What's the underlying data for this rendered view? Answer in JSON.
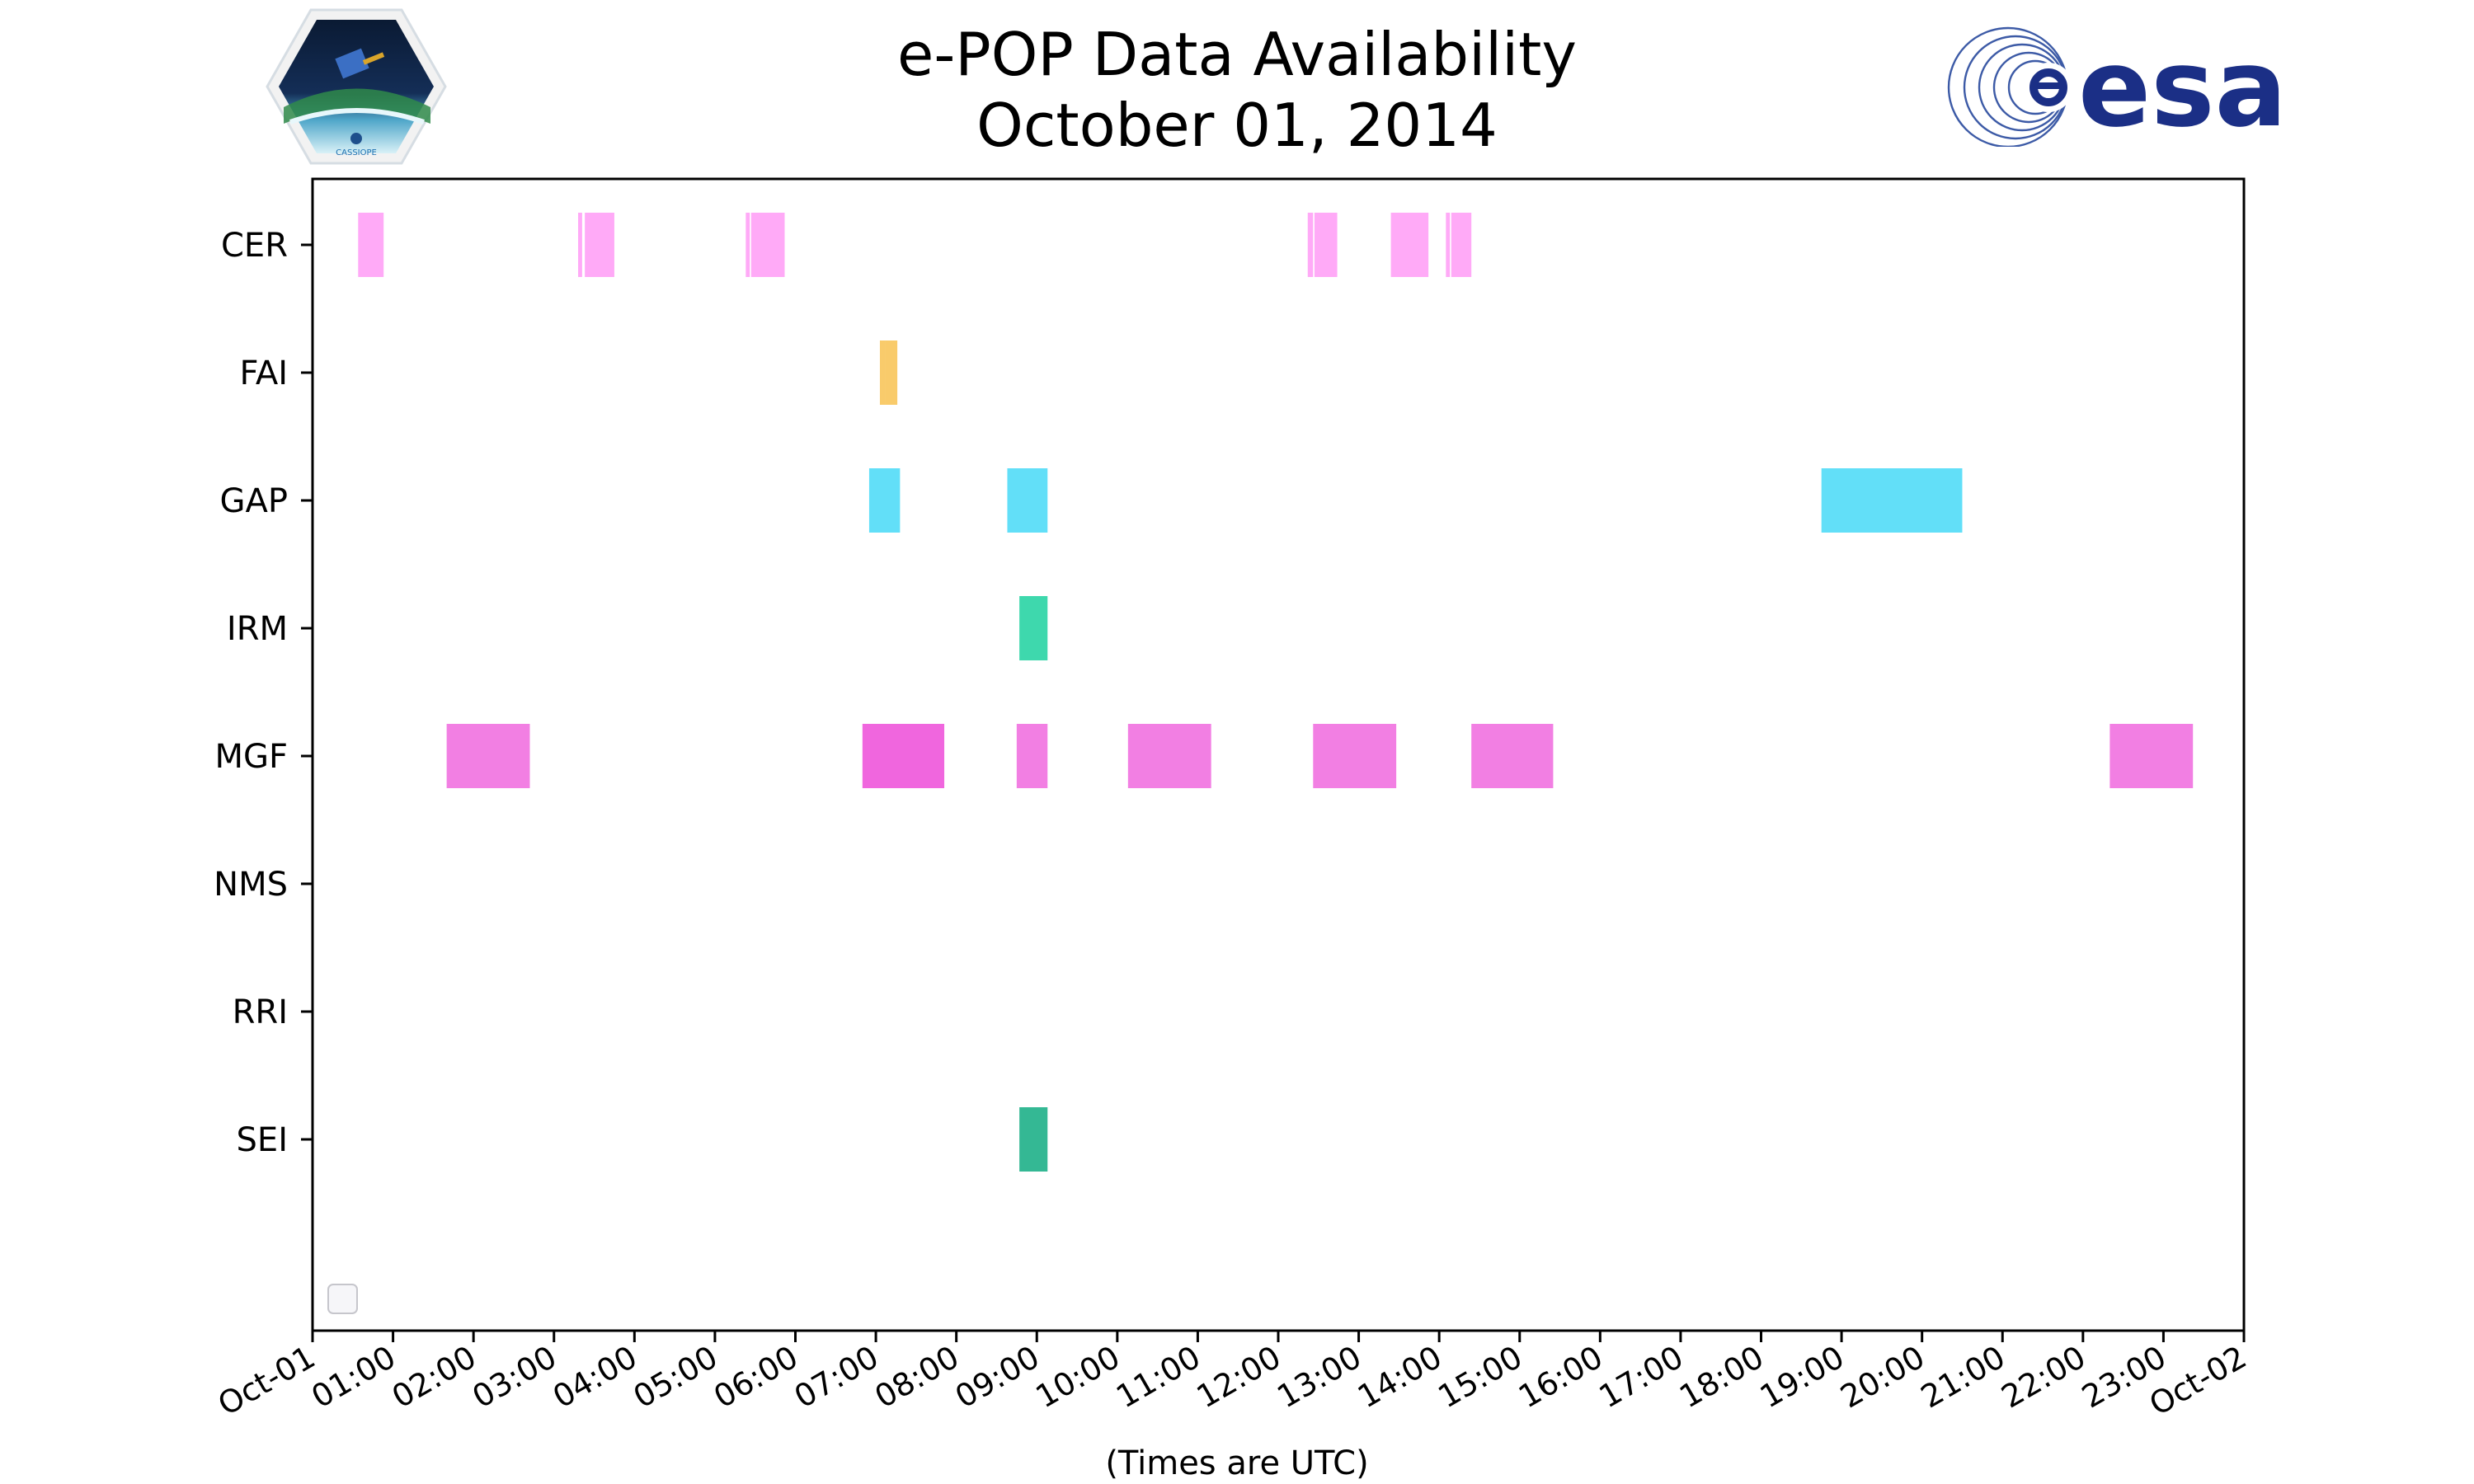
{
  "page": {
    "title_line1": "e-POP Data Availability",
    "title_line2": "October 01, 2014",
    "left_logo_text": "CASSIOPE",
    "right_logo_text": "esa"
  },
  "chart_data": {
    "type": "bar",
    "title": "e-POP Data Availability\nOctober 01, 2014",
    "xlabel": "(Times are UTC)",
    "ylabel": "",
    "x_unit": "hours UTC, October 01, 2014",
    "xlim": [
      "Oct-01 00:00",
      "Oct-02 00:00"
    ],
    "x_ticks": [
      "Oct-01",
      "01:00",
      "02:00",
      "03:00",
      "04:00",
      "05:00",
      "06:00",
      "07:00",
      "08:00",
      "09:00",
      "10:00",
      "11:00",
      "12:00",
      "13:00",
      "14:00",
      "15:00",
      "16:00",
      "17:00",
      "18:00",
      "19:00",
      "20:00",
      "21:00",
      "22:00",
      "23:00",
      "Oct-02"
    ],
    "categories": [
      "CER",
      "FAI",
      "GAP",
      "IRM",
      "MGF",
      "NMS",
      "RRI",
      "SEI"
    ],
    "grid": false,
    "legend": "lower left, empty",
    "series": [
      {
        "name": "CER",
        "color": "#ffaaf7",
        "intervals": [
          [
            "00:34",
            "00:53"
          ],
          [
            "03:18",
            "03:21"
          ],
          [
            "03:23",
            "03:45"
          ],
          [
            "05:23",
            "05:26"
          ],
          [
            "05:27",
            "05:52"
          ],
          [
            "12:22",
            "12:26"
          ],
          [
            "12:27",
            "12:44"
          ],
          [
            "13:24",
            "13:52"
          ],
          [
            "14:05",
            "14:08"
          ],
          [
            "14:09",
            "14:24"
          ]
        ]
      },
      {
        "name": "FAI",
        "color": "#f9cb6b",
        "intervals": [
          [
            "07:03",
            "07:07"
          ],
          [
            "07:07",
            "07:16"
          ]
        ]
      },
      {
        "name": "GAP",
        "color": "#62dff8",
        "intervals": [
          [
            "06:55",
            "07:18"
          ],
          [
            "08:38",
            "09:08"
          ],
          [
            "18:45",
            "20:30"
          ]
        ]
      },
      {
        "name": "IRM",
        "color": "#3ed8ad",
        "intervals": [
          [
            "08:47",
            "09:08"
          ]
        ]
      },
      {
        "name": "MGF",
        "color": "#f27fe3",
        "intervals": [
          [
            "01:40",
            "02:42"
          ],
          [
            "06:50",
            "07:51"
          ],
          [
            "08:45",
            "09:08"
          ],
          [
            "10:08",
            "11:10"
          ],
          [
            "12:26",
            "13:28"
          ],
          [
            "14:24",
            "15:25"
          ],
          [
            "22:20",
            "23:22"
          ]
        ]
      },
      {
        "name": "NMS",
        "color": "#999999",
        "intervals": []
      },
      {
        "name": "RRI",
        "color": "#999999",
        "intervals": []
      },
      {
        "name": "SEI",
        "color": "#34b894",
        "intervals": [
          [
            "08:47",
            "09:08"
          ]
        ]
      }
    ],
    "special_colors": {
      "MGF_06:50": "#f066de"
    }
  }
}
